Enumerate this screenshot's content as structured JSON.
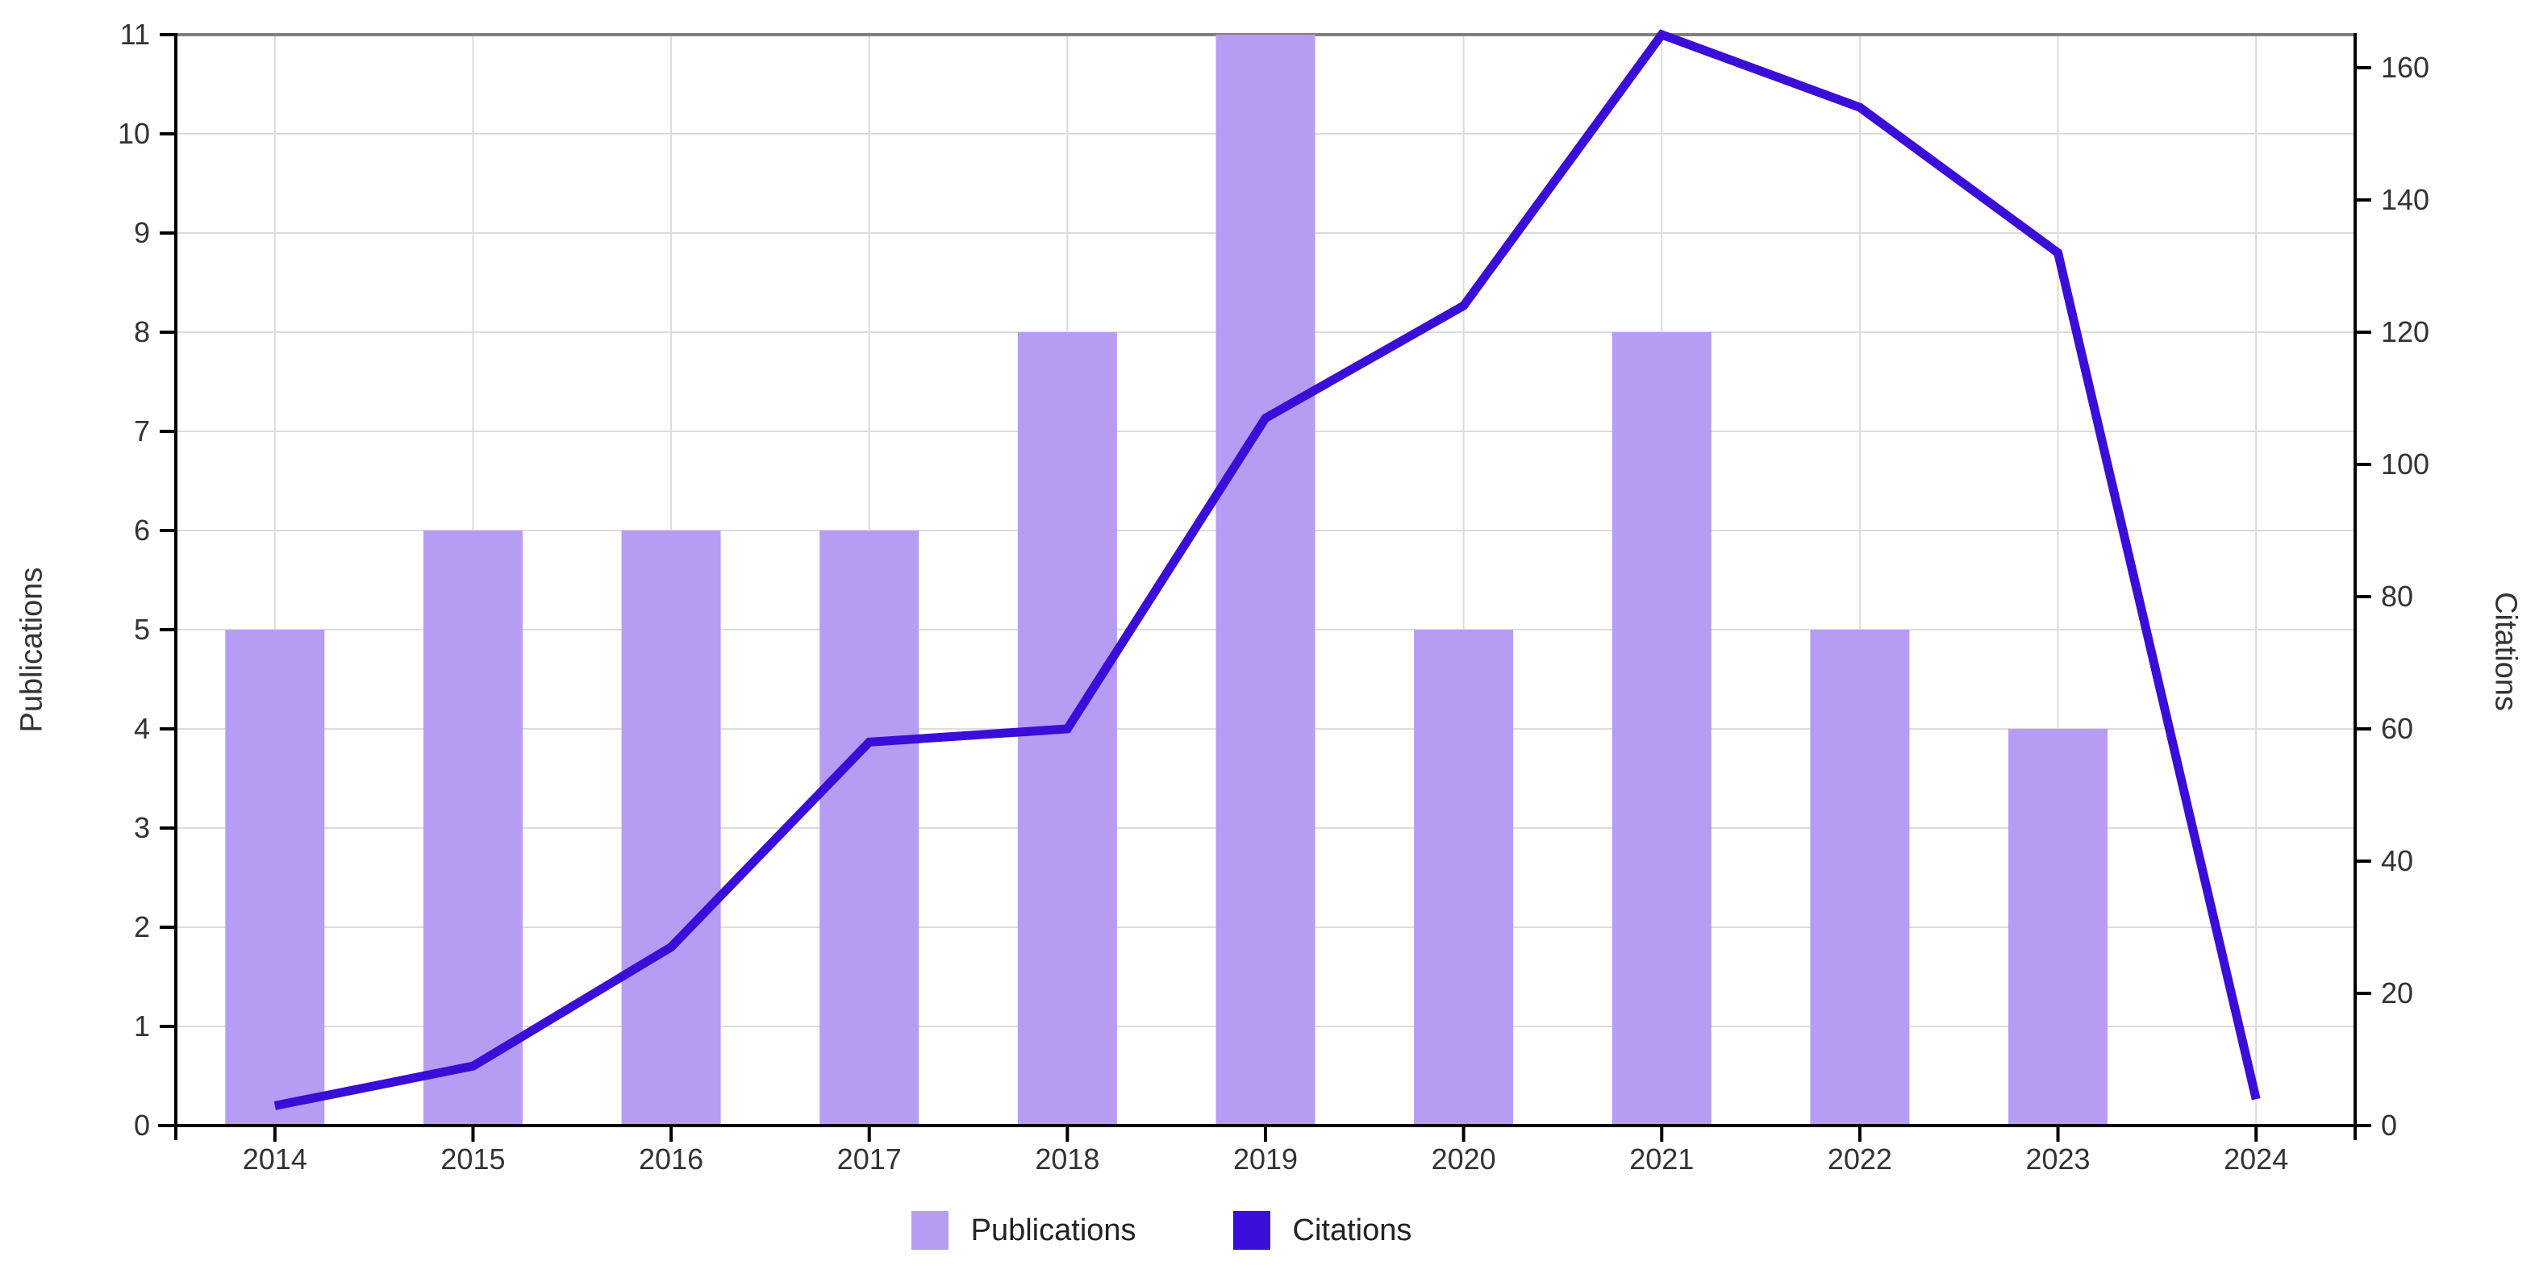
{
  "chart_data": {
    "type": "bar",
    "subtype": "dual-axis-bar-line",
    "categories": [
      "2014",
      "2015",
      "2016",
      "2017",
      "2018",
      "2019",
      "2020",
      "2021",
      "2022",
      "2023",
      "2024"
    ],
    "series": [
      {
        "name": "Publications",
        "type": "bar",
        "axis": "left",
        "color": "#b79cf3",
        "values": [
          5,
          6,
          6,
          6,
          8,
          11,
          5,
          8,
          5,
          4,
          0
        ]
      },
      {
        "name": "Citations",
        "type": "line",
        "axis": "right",
        "color": "#3b0dd8",
        "values": [
          3,
          9,
          27,
          58,
          60,
          107,
          124,
          165,
          154,
          132,
          4
        ]
      }
    ],
    "left_axis": {
      "label": "Publications",
      "min": 0,
      "max": 11,
      "ticks": [
        0,
        1,
        2,
        3,
        4,
        5,
        6,
        7,
        8,
        9,
        10,
        11
      ]
    },
    "right_axis": {
      "label": "Citations",
      "min": 0,
      "max": 165,
      "ticks": [
        0,
        20,
        40,
        60,
        80,
        100,
        120,
        140,
        160
      ]
    },
    "x_axis": {
      "tick_labels": [
        "2014",
        "2015",
        "2016",
        "2017",
        "2018",
        "2019",
        "2020",
        "2021",
        "2022",
        "2023",
        "2024"
      ]
    },
    "legend": {
      "position": "bottom",
      "items": [
        "Publications",
        "Citations"
      ]
    },
    "grid": {
      "horizontal": true,
      "vertical": true,
      "color": "#dcdcdc"
    },
    "style": {
      "background": "#ffffff",
      "axis_color": "#000000",
      "top_spine_color": "#7f7f7f",
      "tick_text_color": "#333333",
      "bar_color": "#b79cf3",
      "line_color": "#3b0dd8"
    }
  }
}
